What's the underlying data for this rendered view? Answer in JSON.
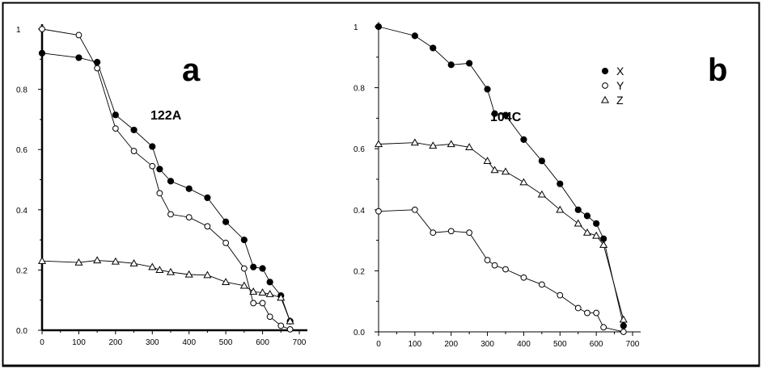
{
  "chart_data": [
    {
      "type": "line",
      "panel_label": "a",
      "sample_label": "122A",
      "xlim": [
        0,
        700
      ],
      "ylim": [
        0,
        1
      ],
      "x_ticks": [
        "0",
        "100",
        "200",
        "300",
        "400",
        "500",
        "600",
        "700"
      ],
      "y_ticks": [
        "0.0",
        "0.2",
        "0.4",
        "0.6",
        "0.8",
        "1"
      ],
      "grid": false,
      "series": [
        {
          "name": "X",
          "marker": "filled-circle",
          "x": [
            0,
            100,
            150,
            200,
            250,
            300,
            320,
            350,
            400,
            450,
            500,
            550,
            575,
            600,
            620,
            650,
            675
          ],
          "y": [
            0.92,
            0.905,
            0.89,
            0.715,
            0.665,
            0.61,
            0.535,
            0.495,
            0.47,
            0.44,
            0.36,
            0.3,
            0.21,
            0.205,
            0.16,
            0.115,
            0.03
          ]
        },
        {
          "name": "Y",
          "marker": "open-circle",
          "x": [
            0,
            100,
            150,
            200,
            250,
            300,
            320,
            350,
            400,
            450,
            500,
            550,
            575,
            600,
            620,
            650,
            675
          ],
          "y": [
            1.0,
            0.98,
            0.87,
            0.67,
            0.595,
            0.545,
            0.455,
            0.385,
            0.375,
            0.345,
            0.29,
            0.205,
            0.09,
            0.09,
            0.045,
            0.015,
            0.003
          ]
        },
        {
          "name": "Z",
          "marker": "open-triangle",
          "x": [
            0,
            100,
            150,
            200,
            250,
            300,
            320,
            350,
            400,
            450,
            500,
            550,
            575,
            600,
            620,
            650,
            675
          ],
          "y": [
            0.23,
            0.225,
            0.232,
            0.228,
            0.222,
            0.21,
            0.2,
            0.193,
            0.185,
            0.183,
            0.16,
            0.148,
            0.128,
            0.125,
            0.12,
            0.108,
            0.03
          ]
        }
      ]
    },
    {
      "type": "line",
      "panel_label": "b",
      "sample_label": "104C",
      "xlim": [
        0,
        700
      ],
      "ylim": [
        0,
        1
      ],
      "x_ticks": [
        "0",
        "100",
        "200",
        "300",
        "400",
        "500",
        "600",
        "700"
      ],
      "y_ticks": [
        "0.0",
        "0.2",
        "0.4",
        "0.6",
        "0.8",
        "1"
      ],
      "grid": false,
      "legend": {
        "placement": "top-right",
        "entries": [
          {
            "name": "X",
            "marker": "filled-circle"
          },
          {
            "name": "Y",
            "marker": "open-circle"
          },
          {
            "name": "Z",
            "marker": "open-triangle"
          }
        ]
      },
      "series": [
        {
          "name": "X",
          "marker": "filled-circle",
          "x": [
            0,
            100,
            150,
            200,
            250,
            300,
            320,
            350,
            400,
            450,
            500,
            550,
            575,
            600,
            620,
            675
          ],
          "y": [
            1.0,
            0.97,
            0.93,
            0.875,
            0.88,
            0.795,
            0.715,
            0.71,
            0.63,
            0.56,
            0.485,
            0.4,
            0.38,
            0.355,
            0.305,
            0.02
          ]
        },
        {
          "name": "Y",
          "marker": "open-circle",
          "x": [
            0,
            100,
            150,
            200,
            250,
            300,
            320,
            350,
            400,
            450,
            500,
            550,
            575,
            600,
            620,
            675
          ],
          "y": [
            0.395,
            0.4,
            0.325,
            0.33,
            0.325,
            0.235,
            0.218,
            0.205,
            0.178,
            0.155,
            0.12,
            0.078,
            0.062,
            0.062,
            0.015,
            0.0
          ]
        },
        {
          "name": "Z",
          "marker": "open-triangle",
          "x": [
            0,
            100,
            150,
            200,
            250,
            300,
            320,
            350,
            400,
            450,
            500,
            550,
            575,
            600,
            620,
            675
          ],
          "y": [
            0.615,
            0.62,
            0.61,
            0.615,
            0.605,
            0.56,
            0.53,
            0.525,
            0.49,
            0.45,
            0.4,
            0.355,
            0.325,
            0.315,
            0.285,
            0.04
          ]
        }
      ]
    }
  ]
}
